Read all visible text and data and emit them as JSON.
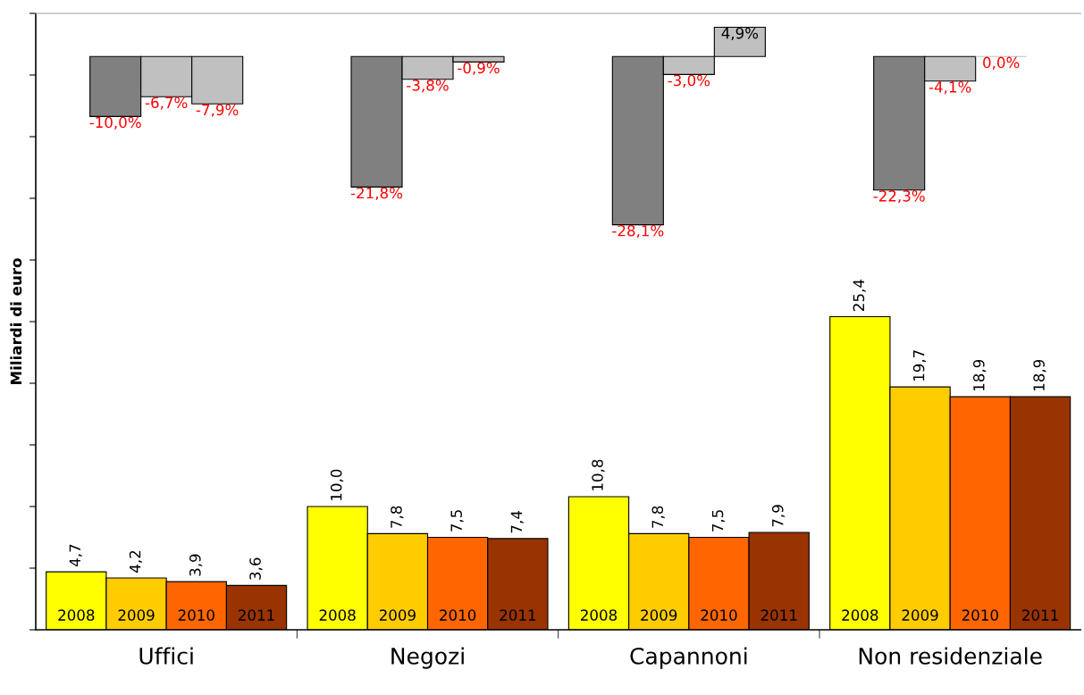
{
  "chart_data": {
    "type": "bar",
    "categories": [
      "Uffici",
      "Negozi",
      "Capannoni",
      "Non residenziale"
    ],
    "ylabel": "Miliardi di euro",
    "tick_labels": "x",
    "ylim": [
      0,
      50
    ],
    "yticks": [
      {
        "value": 0,
        "label": null
      },
      {
        "value": 5,
        "label": null
      },
      {
        "value": 10,
        "label": null
      },
      {
        "value": 15,
        "label": null
      },
      {
        "value": 20,
        "label": null
      },
      {
        "value": 25,
        "label": null
      },
      {
        "value": 30,
        "label": null
      },
      {
        "value": 35,
        "label": null
      },
      {
        "value": 40,
        "label": null
      },
      {
        "value": 45,
        "label": null
      },
      {
        "value": 50,
        "label": null
      }
    ],
    "series": [
      {
        "name": "2008",
        "color": "#ffff00",
        "values": [
          4.7,
          10.0,
          10.8,
          25.4
        ],
        "value_labels": [
          "4,7",
          "10,0",
          "10,8",
          "25,4"
        ]
      },
      {
        "name": "2009",
        "color": "#ffcc00",
        "values": [
          4.2,
          7.8,
          7.8,
          19.7
        ],
        "value_labels": [
          "4,2",
          "7,8",
          "7,8",
          "19,7"
        ]
      },
      {
        "name": "2010",
        "color": "#ff6600",
        "values": [
          3.9,
          7.5,
          7.5,
          18.9
        ],
        "value_labels": [
          "3,9",
          "7,5",
          "7,5",
          "18,9"
        ]
      },
      {
        "name": "2011",
        "color": "#993300",
        "values": [
          3.6,
          7.4,
          7.9,
          18.9
        ],
        "value_labels": [
          "3,6",
          "7,4",
          "7,9",
          "18,9"
        ]
      },
      {
        "axis": "y2",
        "color": "#808080",
        "values": [
          -10.0,
          -21.8,
          -28.1,
          -22.3
        ],
        "value_labels": [
          "-10,0%",
          "-21,8%",
          "-28,1%",
          "-22,3%"
        ]
      },
      {
        "axis": "y2",
        "color": "#c0c0c0",
        "values": [
          -6.7,
          -3.8,
          -3.0,
          -4.1
        ],
        "value_labels": [
          "-6,7%",
          "-3,8%",
          "-3,0%",
          "-4,1%"
        ]
      },
      {
        "axis": "y2",
        "color": "#c0c0c0",
        "values": [
          -7.9,
          -0.9,
          4.9,
          0.0
        ],
        "value_labels": [
          "-7,9%",
          "-0,9%",
          "4,9%",
          "0,0%"
        ]
      }
    ]
  }
}
